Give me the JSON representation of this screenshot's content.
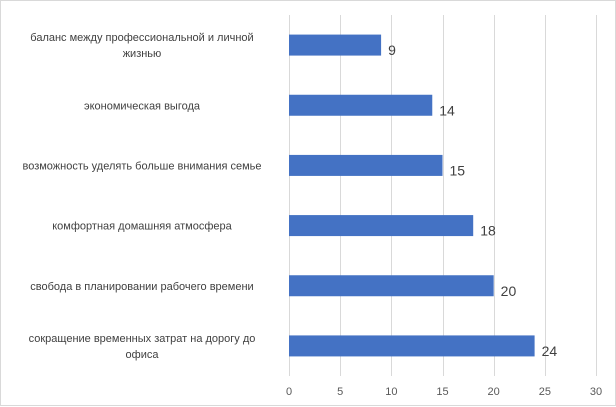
{
  "chart_data": {
    "type": "bar",
    "orientation": "horizontal",
    "categories": [
      "баланс между профессиональной и личной жизнью",
      "экономическая выгода",
      "возможность уделять больше внимания семье",
      "комфортная домашняя атмосфера",
      "свобода в планировании рабочего времени",
      "сокращение временных затрат на дорогу до офиса"
    ],
    "category_lines": [
      [
        "баланс между профессиональной и личной",
        "жизнью"
      ],
      [
        "экономическая выгода"
      ],
      [
        "возможность уделять больше внимания семье"
      ],
      [
        "комфортная домашняя атмосфера"
      ],
      [
        "свобода в планировании рабочего времени"
      ],
      [
        "сокращение временных затрат на дорогу до",
        "офиса"
      ]
    ],
    "values": [
      9,
      14,
      15,
      18,
      20,
      24
    ],
    "xlim": [
      0,
      30
    ],
    "xticks": [
      "0",
      "5",
      "10",
      "15",
      "20",
      "25",
      "30"
    ],
    "data_labels": true,
    "grid": "vertical",
    "legend": "none",
    "bar_color": "#4472c4",
    "grid_color": "#d9d9d9",
    "title": "",
    "xlabel": "",
    "ylabel": ""
  }
}
